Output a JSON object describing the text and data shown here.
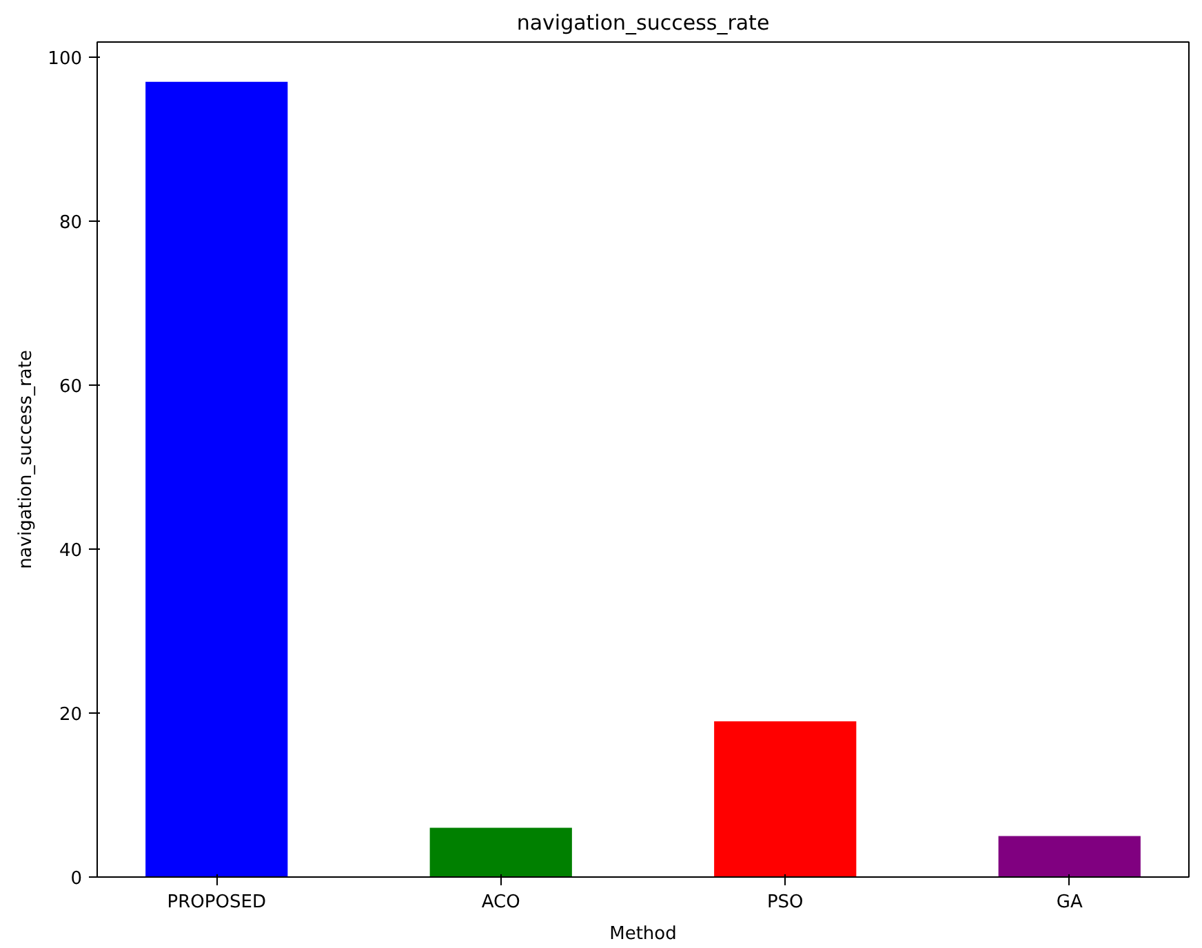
{
  "chart_data": {
    "type": "bar",
    "title": "navigation_success_rate",
    "xlabel": "Method",
    "ylabel": "navigation_success_rate",
    "categories": [
      "PROPOSED",
      "ACO",
      "PSO",
      "GA"
    ],
    "values": [
      97,
      6,
      19,
      5
    ],
    "colors": [
      "#0000ff",
      "#008000",
      "#ff0000",
      "#800080"
    ],
    "ylim": [
      0,
      101.85
    ],
    "yticks": [
      0,
      20,
      40,
      60,
      80,
      100
    ],
    "grid": false
  }
}
